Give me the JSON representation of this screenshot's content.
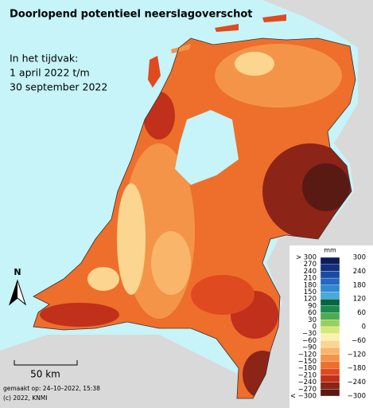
{
  "title": "Doorlopend potentieel neerslagoverschot",
  "period": {
    "label": "In het tijdvak:",
    "start": "1 april 2022 t/m",
    "end": "30 september 2022"
  },
  "north": "N",
  "scale": "50 km",
  "made": "gemaakt op: 24–10–2022, 15:38",
  "copyright": "(c) 2022, KNMI",
  "legend": {
    "unit": "mm",
    "left_labels": [
      "> 300",
      "270",
      "240",
      "210",
      "180",
      "150",
      "120",
      "90",
      "60",
      "30",
      "0",
      "−30",
      "−60",
      "−90",
      "−120",
      "−150",
      "−180",
      "−210",
      "−240",
      "−270",
      "< −300"
    ],
    "right_labels": [
      "300",
      "240",
      "180",
      "120",
      "60",
      "0",
      "−60",
      "−120",
      "−180",
      "−240",
      "−300"
    ],
    "colors": [
      "#0d1b5e",
      "#14307f",
      "#1a4ba3",
      "#2468bf",
      "#3189cf",
      "#48a9dc",
      "#086440",
      "#1a8a4a",
      "#4eab52",
      "#98cf5e",
      "#d6e878",
      "#fdf1b0",
      "#fcd690",
      "#f9b66a",
      "#f49448",
      "#ee6e2c",
      "#e04a20",
      "#c0301a",
      "#8c2418",
      "#5a1a14"
    ]
  }
}
